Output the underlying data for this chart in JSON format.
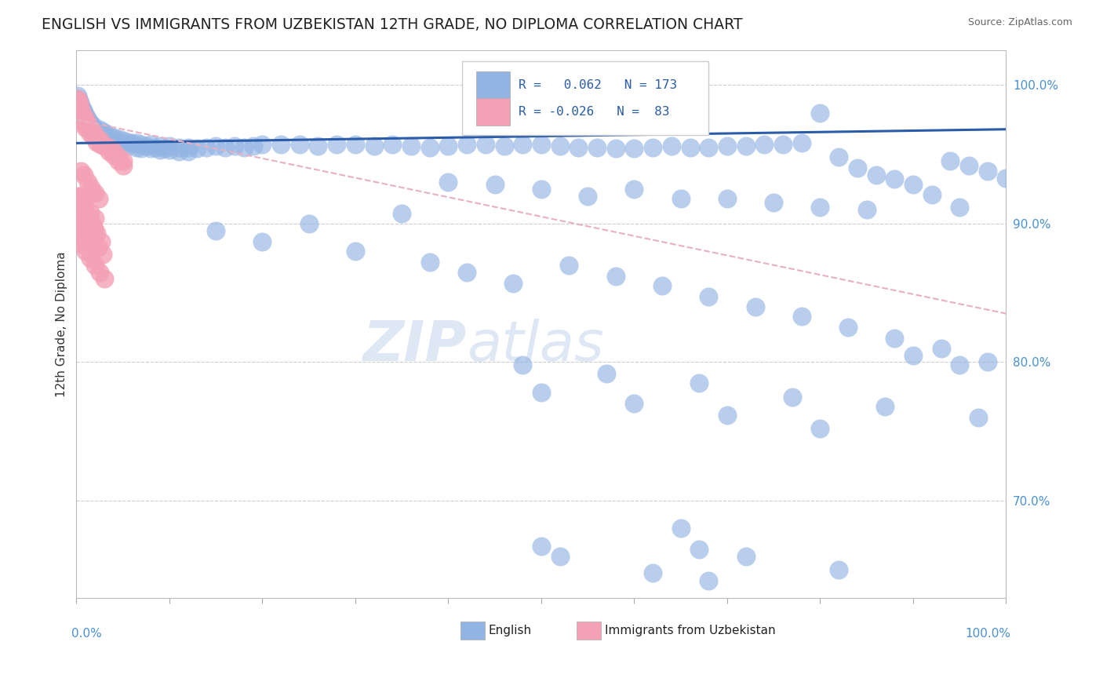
{
  "title": "ENGLISH VS IMMIGRANTS FROM UZBEKISTAN 12TH GRADE, NO DIPLOMA CORRELATION CHART",
  "source": "Source: ZipAtlas.com",
  "ylabel": "12th Grade, No Diploma",
  "legend_labels": [
    "English",
    "Immigrants from Uzbekistan"
  ],
  "blue_color": "#92b4e3",
  "pink_color": "#f4a0b5",
  "blue_trend_color": "#2a5caa",
  "pink_trend_color": "#e8b0c0",
  "background_color": "#ffffff",
  "watermark": "ZIPAtlas",
  "english_x": [
    0.001,
    0.001,
    0.001,
    0.002,
    0.002,
    0.002,
    0.003,
    0.003,
    0.003,
    0.004,
    0.004,
    0.004,
    0.005,
    0.005,
    0.005,
    0.006,
    0.006,
    0.007,
    0.007,
    0.008,
    0.008,
    0.009,
    0.009,
    0.01,
    0.01,
    0.01,
    0.012,
    0.012,
    0.014,
    0.014,
    0.016,
    0.016,
    0.018,
    0.018,
    0.02,
    0.02,
    0.022,
    0.025,
    0.025,
    0.028,
    0.028,
    0.032,
    0.032,
    0.036,
    0.036,
    0.04,
    0.04,
    0.045,
    0.045,
    0.05,
    0.05,
    0.055,
    0.055,
    0.06,
    0.065,
    0.065,
    0.07,
    0.07,
    0.075,
    0.08,
    0.08,
    0.085,
    0.09,
    0.09,
    0.095,
    0.1,
    0.1,
    0.11,
    0.11,
    0.12,
    0.12,
    0.13,
    0.14,
    0.15,
    0.16,
    0.17,
    0.18,
    0.19,
    0.2,
    0.22,
    0.24,
    0.26,
    0.28,
    0.3,
    0.32,
    0.34,
    0.36,
    0.38,
    0.4,
    0.42,
    0.44,
    0.46,
    0.48,
    0.5,
    0.52,
    0.54,
    0.56,
    0.58,
    0.6,
    0.62,
    0.64,
    0.66,
    0.68,
    0.7,
    0.72,
    0.74,
    0.76,
    0.78,
    0.8,
    0.82,
    0.84,
    0.86,
    0.88,
    0.9,
    0.92,
    0.94,
    0.96,
    0.98,
    1.0,
    0.5,
    0.55,
    0.65,
    0.75,
    0.85,
    0.95,
    0.4,
    0.45,
    0.6,
    0.7,
    0.8,
    0.35,
    0.25,
    0.15,
    0.2,
    0.3,
    0.38,
    0.42,
    0.47,
    0.53,
    0.58,
    0.63,
    0.68,
    0.73,
    0.78,
    0.83,
    0.88,
    0.93,
    0.98,
    0.9,
    0.95,
    0.48,
    0.57,
    0.67,
    0.77,
    0.87,
    0.97,
    0.5,
    0.6,
    0.7,
    0.8,
    0.65,
    0.67,
    0.72,
    0.82,
    0.5,
    0.52,
    0.62,
    0.68
  ],
  "english_y": [
    0.992,
    0.988,
    0.985,
    0.99,
    0.987,
    0.983,
    0.988,
    0.985,
    0.982,
    0.987,
    0.983,
    0.98,
    0.985,
    0.983,
    0.98,
    0.983,
    0.98,
    0.982,
    0.978,
    0.98,
    0.977,
    0.978,
    0.975,
    0.978,
    0.975,
    0.972,
    0.975,
    0.972,
    0.973,
    0.97,
    0.972,
    0.968,
    0.97,
    0.967,
    0.968,
    0.965,
    0.967,
    0.968,
    0.965,
    0.966,
    0.963,
    0.965,
    0.962,
    0.963,
    0.96,
    0.962,
    0.959,
    0.961,
    0.958,
    0.96,
    0.957,
    0.959,
    0.956,
    0.958,
    0.958,
    0.955,
    0.957,
    0.954,
    0.956,
    0.957,
    0.954,
    0.955,
    0.956,
    0.953,
    0.954,
    0.956,
    0.953,
    0.955,
    0.952,
    0.955,
    0.952,
    0.954,
    0.955,
    0.956,
    0.955,
    0.956,
    0.955,
    0.956,
    0.957,
    0.957,
    0.957,
    0.956,
    0.957,
    0.957,
    0.956,
    0.957,
    0.956,
    0.955,
    0.956,
    0.957,
    0.957,
    0.956,
    0.957,
    0.957,
    0.956,
    0.955,
    0.955,
    0.954,
    0.954,
    0.955,
    0.956,
    0.955,
    0.955,
    0.956,
    0.956,
    0.957,
    0.957,
    0.958,
    0.98,
    0.948,
    0.94,
    0.935,
    0.932,
    0.928,
    0.921,
    0.945,
    0.942,
    0.938,
    0.933,
    0.925,
    0.92,
    0.918,
    0.915,
    0.91,
    0.912,
    0.93,
    0.928,
    0.925,
    0.918,
    0.912,
    0.907,
    0.9,
    0.895,
    0.887,
    0.88,
    0.872,
    0.865,
    0.857,
    0.87,
    0.862,
    0.855,
    0.847,
    0.84,
    0.833,
    0.825,
    0.817,
    0.81,
    0.8,
    0.805,
    0.798,
    0.798,
    0.792,
    0.785,
    0.775,
    0.768,
    0.76,
    0.778,
    0.77,
    0.762,
    0.752,
    0.68,
    0.665,
    0.66,
    0.65,
    0.667,
    0.66,
    0.648,
    0.642
  ],
  "uzbek_x": [
    0.001,
    0.001,
    0.001,
    0.002,
    0.002,
    0.002,
    0.003,
    0.003,
    0.003,
    0.004,
    0.004,
    0.004,
    0.005,
    0.005,
    0.005,
    0.006,
    0.006,
    0.007,
    0.007,
    0.008,
    0.008,
    0.009,
    0.009,
    0.01,
    0.01,
    0.01,
    0.012,
    0.012,
    0.015,
    0.015,
    0.018,
    0.018,
    0.022,
    0.022,
    0.026,
    0.026,
    0.03,
    0.035,
    0.035,
    0.04,
    0.04,
    0.045,
    0.045,
    0.05,
    0.05,
    0.005,
    0.008,
    0.012,
    0.016,
    0.02,
    0.024,
    0.003,
    0.006,
    0.009,
    0.015,
    0.02,
    0.002,
    0.004,
    0.007,
    0.01,
    0.014,
    0.018,
    0.023,
    0.028,
    0.001,
    0.003,
    0.006,
    0.01,
    0.015,
    0.02,
    0.025,
    0.03,
    0.004,
    0.008,
    0.013,
    0.018,
    0.022,
    0.027,
    0.002,
    0.005,
    0.009,
    0.014,
    0.019
  ],
  "uzbek_y": [
    0.99,
    0.985,
    0.982,
    0.988,
    0.984,
    0.981,
    0.986,
    0.982,
    0.979,
    0.984,
    0.98,
    0.977,
    0.982,
    0.98,
    0.977,
    0.98,
    0.977,
    0.978,
    0.975,
    0.976,
    0.973,
    0.974,
    0.971,
    0.975,
    0.972,
    0.969,
    0.972,
    0.969,
    0.968,
    0.965,
    0.966,
    0.963,
    0.962,
    0.959,
    0.96,
    0.957,
    0.956,
    0.955,
    0.952,
    0.952,
    0.949,
    0.948,
    0.945,
    0.945,
    0.942,
    0.938,
    0.935,
    0.93,
    0.926,
    0.922,
    0.918,
    0.92,
    0.916,
    0.912,
    0.908,
    0.904,
    0.912,
    0.908,
    0.903,
    0.898,
    0.893,
    0.888,
    0.883,
    0.878,
    0.895,
    0.89,
    0.885,
    0.88,
    0.875,
    0.87,
    0.865,
    0.86,
    0.916,
    0.91,
    0.904,
    0.898,
    0.893,
    0.887,
    0.92,
    0.914,
    0.908,
    0.902,
    0.896
  ],
  "eng_trend_x": [
    0.0,
    1.0
  ],
  "eng_trend_y": [
    0.958,
    0.968
  ],
  "uzb_trend_x": [
    0.0,
    1.0
  ],
  "uzb_trend_y": [
    0.975,
    0.835
  ],
  "ylim": [
    0.63,
    1.025
  ],
  "xlim": [
    0.0,
    1.0
  ],
  "yticks": [
    0.7,
    0.8,
    0.9,
    1.0
  ],
  "ytick_labels": [
    "70.0%",
    "80.0%",
    "90.0%",
    "100.0%"
  ]
}
